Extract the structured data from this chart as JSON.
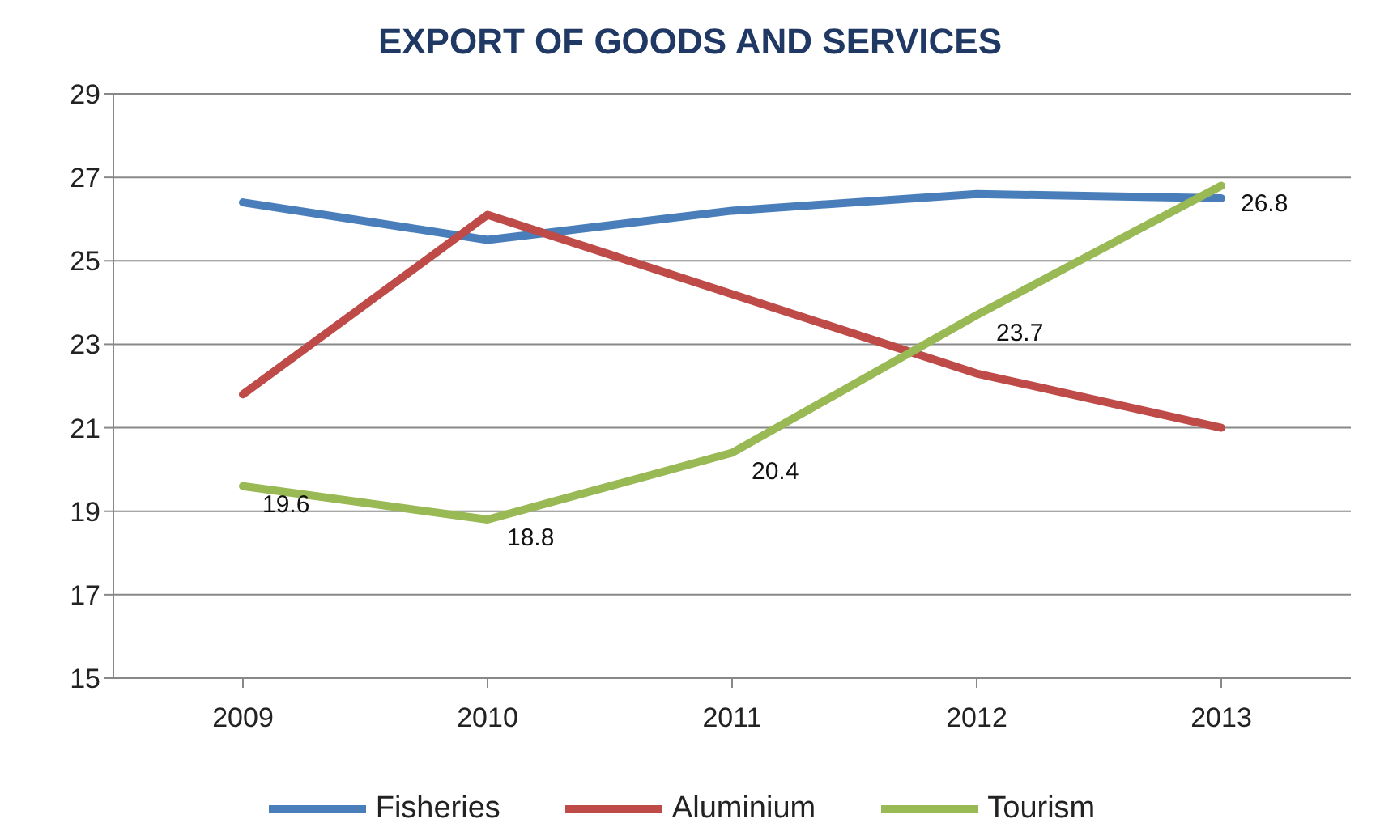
{
  "chart_data": {
    "type": "line",
    "title": "EXPORT OF GOODS AND SERVICES",
    "categories": [
      "2009",
      "2010",
      "2011",
      "2012",
      "2013"
    ],
    "series": [
      {
        "name": "Fisheries",
        "color": "#4a7ebb",
        "values": [
          26.4,
          25.5,
          26.2,
          26.6,
          26.5
        ]
      },
      {
        "name": "Aluminium",
        "color": "#be4b48",
        "values": [
          21.8,
          26.1,
          24.2,
          22.3,
          21.0
        ]
      },
      {
        "name": "Tourism",
        "color": "#98b954",
        "values": [
          19.6,
          18.8,
          20.4,
          23.7,
          26.8
        ],
        "value_labels": [
          "19.6",
          "18.8",
          "20.4",
          "23.7",
          "26.8"
        ]
      }
    ],
    "ylim": [
      15,
      29
    ],
    "yticks": [
      15,
      17,
      19,
      21,
      23,
      25,
      27,
      29
    ],
    "grid": "y",
    "legend": "bottom",
    "marker": "none",
    "line_style": "solid"
  }
}
